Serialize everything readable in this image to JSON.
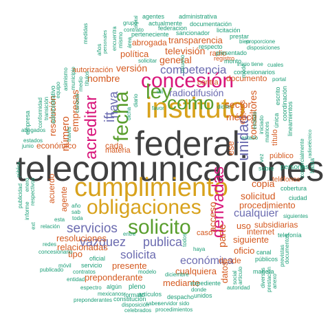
{
  "colors": {
    "background": "#ffffff",
    "dark_gray": "#404040",
    "gold": "#d8a21c",
    "green": "#5a9e2e",
    "magenta": "#d8157a",
    "purple": "#6b6bb0",
    "orange": "#d4581e",
    "teal": "#1b9e77",
    "gray": "#777777"
  },
  "words": [
    {
      "text": "telecomunicaciones",
      "color": "dark_gray"
    },
    {
      "text": "federal",
      "color": "dark_gray"
    },
    {
      "text": "cumplimiento",
      "color": "gold"
    },
    {
      "text": "obligaciones",
      "color": "gold"
    },
    {
      "text": "instituto",
      "color": "gold"
    },
    {
      "text": "solicito",
      "color": "green"
    },
    {
      "text": "concesión",
      "color": "magenta"
    },
    {
      "text": "fecha",
      "color": "green"
    },
    {
      "text": "ley",
      "color": "green"
    },
    {
      "text": "como",
      "color": "green"
    },
    {
      "text": "acreditar",
      "color": "magenta"
    },
    {
      "text": "derivadas",
      "color": "magenta"
    },
    {
      "text": "ift",
      "color": "purple"
    },
    {
      "text": "nava",
      "color": "purple"
    },
    {
      "text": "unidad",
      "color": "purple"
    },
    {
      "text": "competencia",
      "color": "purple"
    },
    {
      "text": "servicios",
      "color": "purple"
    },
    {
      "text": "vazquez",
      "color": "purple"
    },
    {
      "text": "publica",
      "color": "purple"
    },
    {
      "text": "solicita",
      "color": "purple"
    },
    {
      "text": "económica",
      "color": "purple"
    },
    {
      "text": "cualquier",
      "color": "purple"
    },
    {
      "text": "radiodifusión",
      "color": "purple"
    },
    {
      "text": "televisión",
      "color": "orange"
    },
    {
      "text": "general",
      "color": "orange"
    },
    {
      "text": "versión",
      "color": "orange"
    },
    {
      "text": "política",
      "color": "orange"
    },
    {
      "text": "transparencia",
      "color": "orange"
    },
    {
      "text": "abrogada",
      "color": "orange"
    },
    {
      "text": "nombre",
      "color": "orange"
    },
    {
      "text": "número",
      "color": "orange"
    },
    {
      "text": "resolución",
      "color": "orange"
    },
    {
      "text": "empresas",
      "color": "orange"
    },
    {
      "text": "cada",
      "color": "orange"
    },
    {
      "text": "materia",
      "color": "orange"
    },
    {
      "text": "económico",
      "color": "orange"
    },
    {
      "text": "méxico",
      "color": "orange"
    },
    {
      "text": "consultores",
      "color": "orange"
    },
    {
      "text": "sector",
      "color": "orange"
    },
    {
      "text": "documento",
      "color": "orange"
    },
    {
      "text": "copia",
      "color": "orange"
    },
    {
      "text": "solicitud",
      "color": "orange"
    },
    {
      "text": "procedimiento",
      "color": "orange"
    },
    {
      "text": "acceso",
      "color": "orange"
    },
    {
      "text": "parte",
      "color": "orange"
    },
    {
      "text": "datos",
      "color": "orange"
    },
    {
      "text": "resoluciones",
      "color": "orange"
    },
    {
      "text": "relacionadas",
      "color": "orange"
    },
    {
      "text": "tipo",
      "color": "orange"
    },
    {
      "text": "presente",
      "color": "orange"
    },
    {
      "text": "cualquiera",
      "color": "orange"
    },
    {
      "text": "preponderante",
      "color": "orange"
    },
    {
      "text": "mediante",
      "color": "orange"
    },
    {
      "text": "desde",
      "color": "orange"
    },
    {
      "text": "oficio",
      "color": "orange"
    },
    {
      "text": "siguiente",
      "color": "orange"
    },
    {
      "text": "internet",
      "color": "orange"
    },
    {
      "text": "uso",
      "color": "orange"
    },
    {
      "text": "subsidiarias",
      "color": "orange"
    },
    {
      "text": "acuerdo",
      "color": "orange"
    },
    {
      "text": "agente",
      "color": "orange"
    },
    {
      "text": "caso",
      "color": "orange"
    },
    {
      "text": "ese",
      "color": "orange"
    },
    {
      "text": "autorización",
      "color": "orange"
    },
    {
      "text": "efectos",
      "color": "orange"
    },
    {
      "text": "contra",
      "color": "orange"
    },
    {
      "text": "público",
      "color": "orange"
    },
    {
      "text": "título",
      "color": "orange"
    },
    {
      "text": "registro",
      "color": "orange"
    },
    {
      "text": "radio",
      "color": "orange"
    },
    {
      "text": "administrativa",
      "color": "teal"
    },
    {
      "text": "agentes",
      "color": "teal"
    },
    {
      "text": "actualmente",
      "color": "teal"
    },
    {
      "text": "documentación",
      "color": "teal"
    },
    {
      "text": "federacion",
      "color": "teal"
    },
    {
      "text": "sancionador",
      "color": "teal"
    },
    {
      "text": "licitación",
      "color": "teal"
    },
    {
      "text": "perteneciente",
      "color": "teal"
    },
    {
      "text": "prestar",
      "color": "teal"
    },
    {
      "text": "proporcione",
      "color": "teal"
    },
    {
      "text": "disposiciones",
      "color": "teal"
    },
    {
      "text": "presentado",
      "color": "teal"
    },
    {
      "text": "concesionarios",
      "color": "teal"
    },
    {
      "text": "monto",
      "color": "teal"
    },
    {
      "text": "respecto",
      "color": "teal"
    },
    {
      "text": "bien",
      "color": "teal"
    },
    {
      "text": "inicio tiene",
      "color": "teal"
    },
    {
      "text": "cuales",
      "color": "teal"
    },
    {
      "text": "portal",
      "color": "teal"
    },
    {
      "text": "lineamientos",
      "color": "teal"
    },
    {
      "text": "coordinación",
      "color": "teal"
    },
    {
      "text": "escrito",
      "color": "teal"
    },
    {
      "text": "radioeléctrico",
      "color": "teal"
    },
    {
      "text": "comercialmente",
      "color": "teal"
    },
    {
      "text": "personas",
      "color": "teal"
    },
    {
      "text": "hasta",
      "color": "teal"
    },
    {
      "text": "teléfonos",
      "color": "orange"
    },
    {
      "text": "cobertura",
      "color": "teal"
    },
    {
      "text": "ciudad",
      "color": "teal"
    },
    {
      "text": "siguientes",
      "color": "teal"
    },
    {
      "text": "telefonía",
      "color": "teal"
    },
    {
      "text": "canal",
      "color": "teal"
    },
    {
      "text": "públicos",
      "color": "teal"
    },
    {
      "text": "previstas",
      "color": "teal"
    },
    {
      "text": "documentos",
      "color": "teal"
    },
    {
      "text": "manera",
      "color": "teal"
    },
    {
      "text": "diversas",
      "color": "teal"
    },
    {
      "text": "prestación",
      "color": "teal"
    },
    {
      "text": "anexo",
      "color": "teal"
    },
    {
      "text": "artículo",
      "color": "teal"
    },
    {
      "text": "expediente",
      "color": "teal"
    },
    {
      "text": "autoridad",
      "color": "teal"
    },
    {
      "text": "unidos",
      "color": "teal"
    },
    {
      "text": "donde",
      "color": "teal"
    },
    {
      "text": "despacho",
      "color": "teal"
    },
    {
      "text": "servidor sido",
      "color": "teal"
    },
    {
      "text": "procedimientos",
      "color": "teal"
    },
    {
      "text": "celebrados",
      "color": "teal"
    },
    {
      "text": "preponderantes",
      "color": "teal"
    },
    {
      "text": "constitución",
      "color": "teal"
    },
    {
      "text": "artículos",
      "color": "teal"
    },
    {
      "text": "disposición",
      "color": "teal"
    },
    {
      "text": "saber",
      "color": "teal"
    },
    {
      "text": "mexicanos",
      "color": "teal"
    },
    {
      "text": "formato",
      "color": "teal"
    },
    {
      "text": "pleno",
      "color": "teal"
    },
    {
      "text": "entidad",
      "color": "teal"
    },
    {
      "text": "algún",
      "color": "teal"
    },
    {
      "text": "espectro",
      "color": "teal"
    },
    {
      "text": "contratos",
      "color": "teal"
    },
    {
      "text": "servicio",
      "color": "teal"
    },
    {
      "text": "oficial",
      "color": "teal"
    },
    {
      "text": "modelo",
      "color": "teal"
    },
    {
      "text": "diciembre",
      "color": "teal"
    },
    {
      "text": "publicado",
      "color": "teal"
    },
    {
      "text": "móvil",
      "color": "teal"
    },
    {
      "text": "concesionario",
      "color": "teal"
    },
    {
      "text": "redes",
      "color": "teal"
    },
    {
      "text": "relación",
      "color": "teal"
    },
    {
      "text": "esta",
      "color": "teal"
    },
    {
      "text": "toda",
      "color": "teal"
    },
    {
      "text": "sab",
      "color": "teal"
    },
    {
      "text": "año",
      "color": "teal"
    },
    {
      "text": "informe",
      "color": "teal"
    },
    {
      "text": "publicidad",
      "color": "teal"
    },
    {
      "text": "respectivos",
      "color": "teal"
    },
    {
      "text": "enero",
      "color": "teal"
    },
    {
      "text": "estados",
      "color": "teal"
    },
    {
      "text": "junio",
      "color": "teal"
    },
    {
      "text": "abogados",
      "color": "teal"
    },
    {
      "text": "empresa",
      "color": "teal"
    },
    {
      "text": "conformidad",
      "color": "teal"
    },
    {
      "text": "transición",
      "color": "teal"
    },
    {
      "text": "administrativo",
      "color": "teal"
    },
    {
      "text": "asimismo",
      "color": "teal"
    },
    {
      "text": "municipio",
      "color": "teal"
    },
    {
      "text": "medio",
      "color": "teal"
    },
    {
      "text": "conocer",
      "color": "teal"
    },
    {
      "text": "medidas",
      "color": "teal"
    },
    {
      "text": "años",
      "color": "teal"
    },
    {
      "text": "personales",
      "color": "teal"
    },
    {
      "text": "grupo",
      "color": "teal"
    },
    {
      "text": "contrato",
      "color": "teal"
    },
    {
      "text": "encuentra",
      "color": "teal"
    },
    {
      "text": "digital",
      "color": "teal"
    },
    {
      "text": "mismo",
      "color": "teal"
    },
    {
      "text": "área",
      "color": "teal"
    },
    {
      "text": "solicitar",
      "color": "teal"
    },
    {
      "text": "usuario",
      "color": "teal"
    },
    {
      "text": "títulos",
      "color": "teal"
    },
    {
      "text": "viii",
      "color": "teal"
    },
    {
      "text": "favor",
      "color": "teal"
    },
    {
      "text": "dicho",
      "color": "teal"
    },
    {
      "text": "diario",
      "color": "teal"
    },
    {
      "text": "estado",
      "color": "teal"
    },
    {
      "text": "sobre",
      "color": "teal"
    },
    {
      "text": "entre",
      "color": "teal"
    },
    {
      "text": "haya",
      "color": "teal"
    },
    {
      "text": "todos",
      "color": "teal"
    },
    {
      "text": "única",
      "color": "teal"
    },
    {
      "text": "matrices",
      "color": "teal"
    },
    {
      "text": "iniciado",
      "color": "teal"
    },
    {
      "text": "través",
      "color": "teal"
    },
    {
      "text": "ext",
      "color": "teal"
    },
    {
      "text": "pública",
      "color": "teal"
    },
    {
      "text": "equipo",
      "color": "teal"
    },
    {
      "text": "dicha",
      "color": "teal"
    },
    {
      "text": "social",
      "color": "teal"
    },
    {
      "text": "emitido",
      "color": "teal"
    },
    {
      "text": "modo",
      "color": "teal"
    },
    {
      "text": "vez",
      "color": "teal"
    }
  ]
}
